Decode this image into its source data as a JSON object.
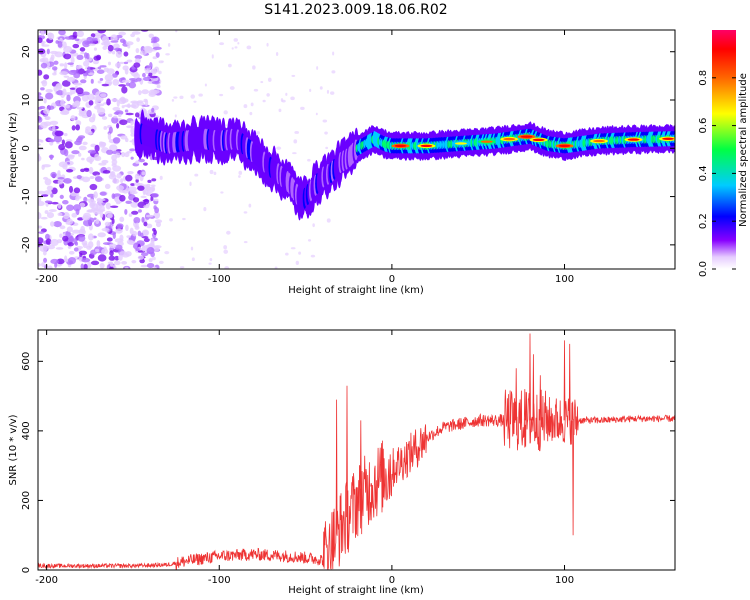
{
  "figure": {
    "title": "S141.2023.009.18.06.R02"
  },
  "chart_data": [
    {
      "type": "heatmap",
      "xlabel": "Height of straight line (km)",
      "ylabel": "Frequency (Hz)",
      "xlim": [
        -205,
        164
      ],
      "ylim": [
        -25,
        24.5
      ],
      "xticks": [
        -200,
        -100,
        0,
        100
      ],
      "yticks": [
        -20,
        -10,
        0,
        10,
        20
      ],
      "colorbar": {
        "label": "Normalized spectral amplitude",
        "range": [
          0,
          1
        ],
        "ticks": [
          0.0,
          0.2,
          0.4,
          0.6,
          0.8
        ],
        "colormap": [
          "#ffffff",
          "#e6ccff",
          "#b066ff",
          "#6600ff",
          "#0000ff",
          "#00ccff",
          "#00ff66",
          "#ffff00",
          "#ff6600",
          "#ff0000",
          "#ff0066"
        ]
      },
      "ridge": {
        "description_points_x": [
          -145,
          -130,
          -120,
          -110,
          -100,
          -90,
          -80,
          -70,
          -60,
          -52,
          -45,
          -40,
          -35,
          -30,
          -25,
          -20,
          -15,
          -10,
          -5,
          0,
          20,
          40,
          60,
          70,
          80,
          90,
          100,
          120,
          140,
          164
        ],
        "description_points_y": [
          3,
          1,
          1.5,
          2,
          1.5,
          2,
          -1,
          -4,
          -7,
          -11,
          -8,
          -6,
          -5,
          -3,
          -2,
          0,
          1,
          2,
          1,
          0.5,
          0.5,
          1,
          1.5,
          2,
          2.5,
          1,
          0.5,
          1.5,
          1.8,
          2
        ],
        "peak_x": [
          5,
          20,
          40,
          55,
          68,
          78,
          85,
          100,
          120,
          140,
          160
        ],
        "peak_strength": [
          0.9,
          0.85,
          0.7,
          0.75,
          0.8,
          0.9,
          0.85,
          0.9,
          0.8,
          0.85,
          0.85
        ]
      }
    },
    {
      "type": "line",
      "xlabel": "Height of straight line (km)",
      "ylabel": "SNR (10 * v/v)",
      "xlim": [
        -205,
        164
      ],
      "ylim": [
        0,
        690
      ],
      "xticks": [
        -200,
        -100,
        0,
        100
      ],
      "yticks": [
        0,
        200,
        400,
        600
      ],
      "color": "#ee3333",
      "baseline_x": [
        -205,
        -150,
        -130,
        -120,
        -100,
        -80,
        -60,
        -40,
        -30,
        -20,
        -10,
        0,
        10,
        20,
        30,
        40,
        50,
        60,
        70,
        80,
        90,
        100,
        110,
        120,
        140,
        164
      ],
      "baseline_y": [
        12,
        12,
        15,
        25,
        40,
        45,
        40,
        30,
        120,
        200,
        250,
        290,
        330,
        380,
        410,
        420,
        430,
        430,
        430,
        430,
        430,
        430,
        430,
        430,
        435,
        435
      ],
      "spikes_x": [
        -32,
        -26,
        -18,
        -12,
        -8,
        72,
        77,
        80,
        82,
        86,
        100,
        103,
        105
      ],
      "spikes_y": [
        490,
        530,
        430,
        250,
        240,
        580,
        520,
        680,
        620,
        560,
        660,
        650,
        100
      ]
    }
  ]
}
